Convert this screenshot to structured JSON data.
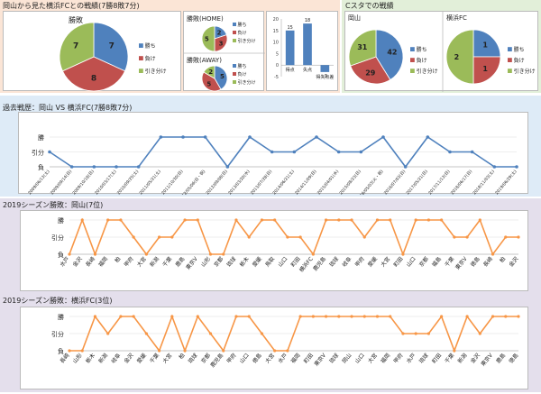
{
  "colors": {
    "win": "#4F81BD",
    "loss": "#C0504D",
    "draw": "#9BBB59",
    "line_hist": "#4F81BD",
    "line_season": "#F79646",
    "bg_top_left": "#FBE5D6",
    "bg_top_right": "#E2EFD9",
    "bg_hist": "#DEEBF7",
    "bg_season": "#E4DFEC"
  },
  "legend": {
    "win": "勝ち",
    "loss": "負け",
    "draw": "引き分け"
  },
  "titles": {
    "top_left": "岡山から見た横浜FCとの戦績(7勝8敗7分)",
    "top_right": "Cスタでの戦績",
    "history": "過去戦歴：岡山 VS 横浜FC(7勝8敗7分)",
    "season1": "2019シーズン勝敗：岡山(7位)",
    "season2": "2019シーズン勝敗：横浜FC(3位)"
  },
  "chart_data": [
    {
      "id": "total",
      "type": "pie",
      "title": "勝敗",
      "labels": [
        "勝ち",
        "負け",
        "引き分け"
      ],
      "values": [
        7,
        8,
        7
      ]
    },
    {
      "id": "home",
      "type": "pie",
      "title": "勝敗(HOME)",
      "labels": [
        "勝ち",
        "負け",
        "引き分け"
      ],
      "values": [
        2,
        3,
        5
      ]
    },
    {
      "id": "away",
      "type": "pie",
      "title": "勝敗(AWAY)",
      "labels": [
        "勝ち",
        "負け",
        "引き分け"
      ],
      "values": [
        5,
        5,
        2
      ]
    },
    {
      "id": "goals",
      "type": "bar",
      "categories": [
        "得点",
        "失点",
        "得失点差"
      ],
      "values": [
        15,
        18,
        -3
      ],
      "ylim": [
        -5,
        20
      ],
      "yticks": [
        -5,
        0,
        5,
        10,
        15,
        20
      ]
    },
    {
      "id": "cs_okayama",
      "type": "pie",
      "title": "岡山",
      "labels": [
        "勝ち",
        "負け",
        "引き分け"
      ],
      "values": [
        42,
        29,
        31
      ]
    },
    {
      "id": "cs_yokohama",
      "type": "pie",
      "title": "横浜FC",
      "labels": [
        "勝ち",
        "負け",
        "引き分け"
      ],
      "values": [
        1,
        1,
        2
      ]
    },
    {
      "id": "history",
      "type": "line",
      "yticks": [
        "勝",
        "引分",
        "負"
      ],
      "x": [
        "2009/06/13(土)",
        "2009/09/14(日)",
        "2009/10/18(日)",
        "2010/03/17(土)",
        "2010/09/25(土)",
        "2011/05/21(土)",
        "2011/10/30(日)",
        "2012/05/06(日・祝)",
        "2012/09/08(日)",
        "2013/03/20(水)",
        "2013/07/28(日)",
        "2014/06/21(土)",
        "2014/11/09(日)",
        "2015/04/01(水)",
        "2015/08/23(日)",
        "2016/05/03(火・祝)",
        "2016/07/03(日)",
        "2017/05/21(日)",
        "2017/11/13(日)",
        "2018/06/17(日)",
        "2018/11/03(土)",
        "2019/06/29(土)"
      ],
      "y": [
        "引分",
        "負",
        "負",
        "負",
        "負",
        "勝",
        "勝",
        "勝",
        "負",
        "勝",
        "引分",
        "引分",
        "勝",
        "引分",
        "引分",
        "勝",
        "負",
        "勝",
        "引分",
        "引分",
        "負",
        "負"
      ]
    },
    {
      "id": "season_okayama",
      "type": "line",
      "yticks": [
        "勝",
        "引分",
        "負"
      ],
      "x": [
        "水戸",
        "金沢",
        "長崎",
        "福岡",
        "柏",
        "甲府",
        "大宮",
        "新潟",
        "千葉",
        "鹿島",
        "東京V",
        "山形",
        "京都",
        "琉球",
        "栃木",
        "愛媛",
        "鳥取",
        "山口",
        "町田",
        "横浜FC",
        "鹿児島",
        "琉球",
        "岐阜",
        "甲府",
        "愛媛",
        "大宮",
        "町田",
        "山口",
        "京都",
        "福島",
        "千葉",
        "東京V",
        "徳島",
        "長崎",
        "柏",
        "金沢"
      ],
      "y": [
        "負",
        "勝",
        "負",
        "勝",
        "勝",
        "引分",
        "負",
        "引分",
        "引分",
        "勝",
        "勝",
        "負",
        "負",
        "勝",
        "引分",
        "勝",
        "勝",
        "引分",
        "引分",
        "負",
        "勝",
        "勝",
        "勝",
        "引分",
        "勝",
        "勝",
        "負",
        "勝",
        "勝",
        "勝",
        "引分",
        "引分",
        "勝",
        "負",
        "引分",
        "引分"
      ]
    },
    {
      "id": "season_yokohama",
      "type": "line",
      "yticks": [
        "勝",
        "引分",
        "負"
      ],
      "x": [
        "長崎",
        "山形",
        "栃木",
        "新潟",
        "岐阜",
        "金沢",
        "愛媛",
        "千葉",
        "大宮",
        "柏",
        "琉球",
        "京都",
        "鹿児島",
        "甲府",
        "山口",
        "徳島",
        "大宮",
        "水戸",
        "福岡",
        "町田",
        "東京V",
        "琉球",
        "岡山",
        "山口",
        "大宮",
        "福岡",
        "甲府",
        "水戸",
        "琉球",
        "町田",
        "千葉",
        "新潟",
        "金沢",
        "東京V",
        "鹿島",
        "徳島"
      ],
      "y": [
        "負",
        "負",
        "勝",
        "引分",
        "勝",
        "勝",
        "引分",
        "負",
        "勝",
        "負",
        "勝",
        "引分",
        "負",
        "勝",
        "勝",
        "引分",
        "負",
        "負",
        "勝",
        "勝",
        "勝",
        "勝",
        "勝",
        "勝",
        "勝",
        "勝",
        "引分",
        "引分",
        "引分",
        "勝",
        "負",
        "勝",
        "引分",
        "勝",
        "勝",
        "勝"
      ]
    }
  ]
}
